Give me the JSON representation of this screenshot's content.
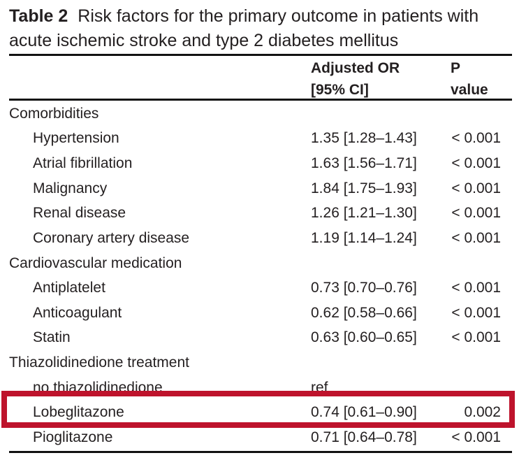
{
  "title": {
    "label": "Table 2",
    "line1": "Risk factors for the primary outcome in patients with",
    "line2": "acute ischemic stroke and type 2 diabetes mellitus"
  },
  "columns": {
    "or_line1": "Adjusted OR",
    "or_line2": "[95% CI]",
    "p_line1": "P",
    "p_line2": "value"
  },
  "rows": [
    {
      "type": "section",
      "label": "Comorbidities",
      "or": "",
      "p": ""
    },
    {
      "type": "item",
      "label": "Hypertension",
      "or": "1.35 [1.28–1.43]",
      "p": "< 0.001"
    },
    {
      "type": "item",
      "label": "Atrial fibrillation",
      "or": "1.63 [1.56–1.71]",
      "p": "< 0.001"
    },
    {
      "type": "item",
      "label": "Malignancy",
      "or": "1.84 [1.75–1.93]",
      "p": "< 0.001"
    },
    {
      "type": "item",
      "label": "Renal disease",
      "or": "1.26 [1.21–1.30]",
      "p": "< 0.001"
    },
    {
      "type": "item",
      "label": "Coronary artery disease",
      "or": "1.19 [1.14–1.24]",
      "p": "< 0.001"
    },
    {
      "type": "section",
      "label": "Cardiovascular medication",
      "or": "",
      "p": ""
    },
    {
      "type": "item",
      "label": "Antiplatelet",
      "or": "0.73 [0.70–0.76]",
      "p": "< 0.001"
    },
    {
      "type": "item",
      "label": "Anticoagulant",
      "or": "0.62 [0.58–0.66]",
      "p": "< 0.001"
    },
    {
      "type": "item",
      "label": "Statin",
      "or": "0.63 [0.60–0.65]",
      "p": "< 0.001"
    },
    {
      "type": "section",
      "label": "Thiazolidinedione treatment",
      "or": "",
      "p": ""
    },
    {
      "type": "item",
      "label": "no thiazolidinedione",
      "or": "ref",
      "p": ""
    },
    {
      "type": "item",
      "label": "Lobeglitazone",
      "or": "0.74 [0.61–0.90]",
      "p": "0.002",
      "highlighted": true
    },
    {
      "type": "item",
      "label": "Pioglitazone",
      "or": "0.71 [0.64–0.78]",
      "p": "< 0.001"
    }
  ],
  "colors": {
    "text": "#231f20",
    "rule": "#121212",
    "highlight_border": "#be132c",
    "background": "#ffffff"
  }
}
